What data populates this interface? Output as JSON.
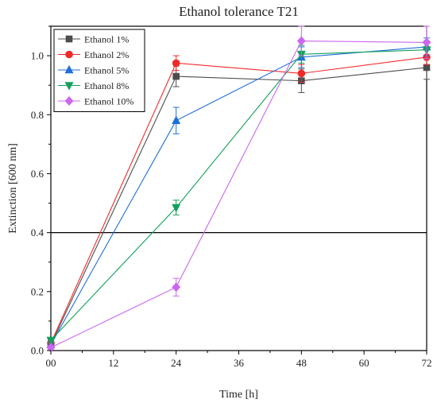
{
  "chart_data": {
    "type": "line",
    "title": "Ethanol tolerance T21",
    "xlabel": "Time [h]",
    "ylabel": "Extinction [600 nm]",
    "x": [
      0,
      24,
      48,
      72
    ],
    "xlim": [
      0,
      72
    ],
    "ylim": [
      0.0,
      1.1
    ],
    "xticks": [
      0,
      12,
      24,
      36,
      48,
      60,
      72
    ],
    "xtick_labels": [
      "00",
      "12",
      "24",
      "36",
      "48",
      "60",
      "72"
    ],
    "yticks": [
      0.0,
      0.2,
      0.4,
      0.6,
      0.8,
      1.0
    ],
    "ytick_labels": [
      "0.0",
      "0.2",
      "0.4",
      "0.6",
      "0.8",
      "1.0"
    ],
    "reference_line": {
      "y": 0.4,
      "color": "#000000"
    },
    "grid": false,
    "legend_position": "top-left",
    "series": [
      {
        "name": "Ethanol 1%",
        "color": "#4d4d4d",
        "marker": "square",
        "values": [
          0.02,
          0.93,
          0.915,
          0.96
        ],
        "errors": [
          0.01,
          0.035,
          0.04,
          0.04
        ]
      },
      {
        "name": "Ethanol 2%",
        "color": "#f02a2a",
        "marker": "circle",
        "values": [
          0.025,
          0.975,
          0.94,
          0.995
        ],
        "errors": [
          0.01,
          0.025,
          0.03,
          0.025
        ]
      },
      {
        "name": "Ethanol 5%",
        "color": "#1f6fd8",
        "marker": "triangle-up",
        "values": [
          0.02,
          0.78,
          0.995,
          1.03
        ],
        "errors": [
          0.01,
          0.045,
          0.035,
          0.03
        ]
      },
      {
        "name": "Ethanol 8%",
        "color": "#12a05a",
        "marker": "triangle-down",
        "values": [
          0.035,
          0.485,
          1.005,
          1.02
        ],
        "errors": [
          0.01,
          0.025,
          0.03,
          0.03
        ]
      },
      {
        "name": "Ethanol 10%",
        "color": "#cc66ee",
        "marker": "diamond",
        "values": [
          0.01,
          0.215,
          1.05,
          1.045
        ],
        "errors": [
          0.005,
          0.03,
          0.05,
          0.055
        ]
      }
    ]
  }
}
